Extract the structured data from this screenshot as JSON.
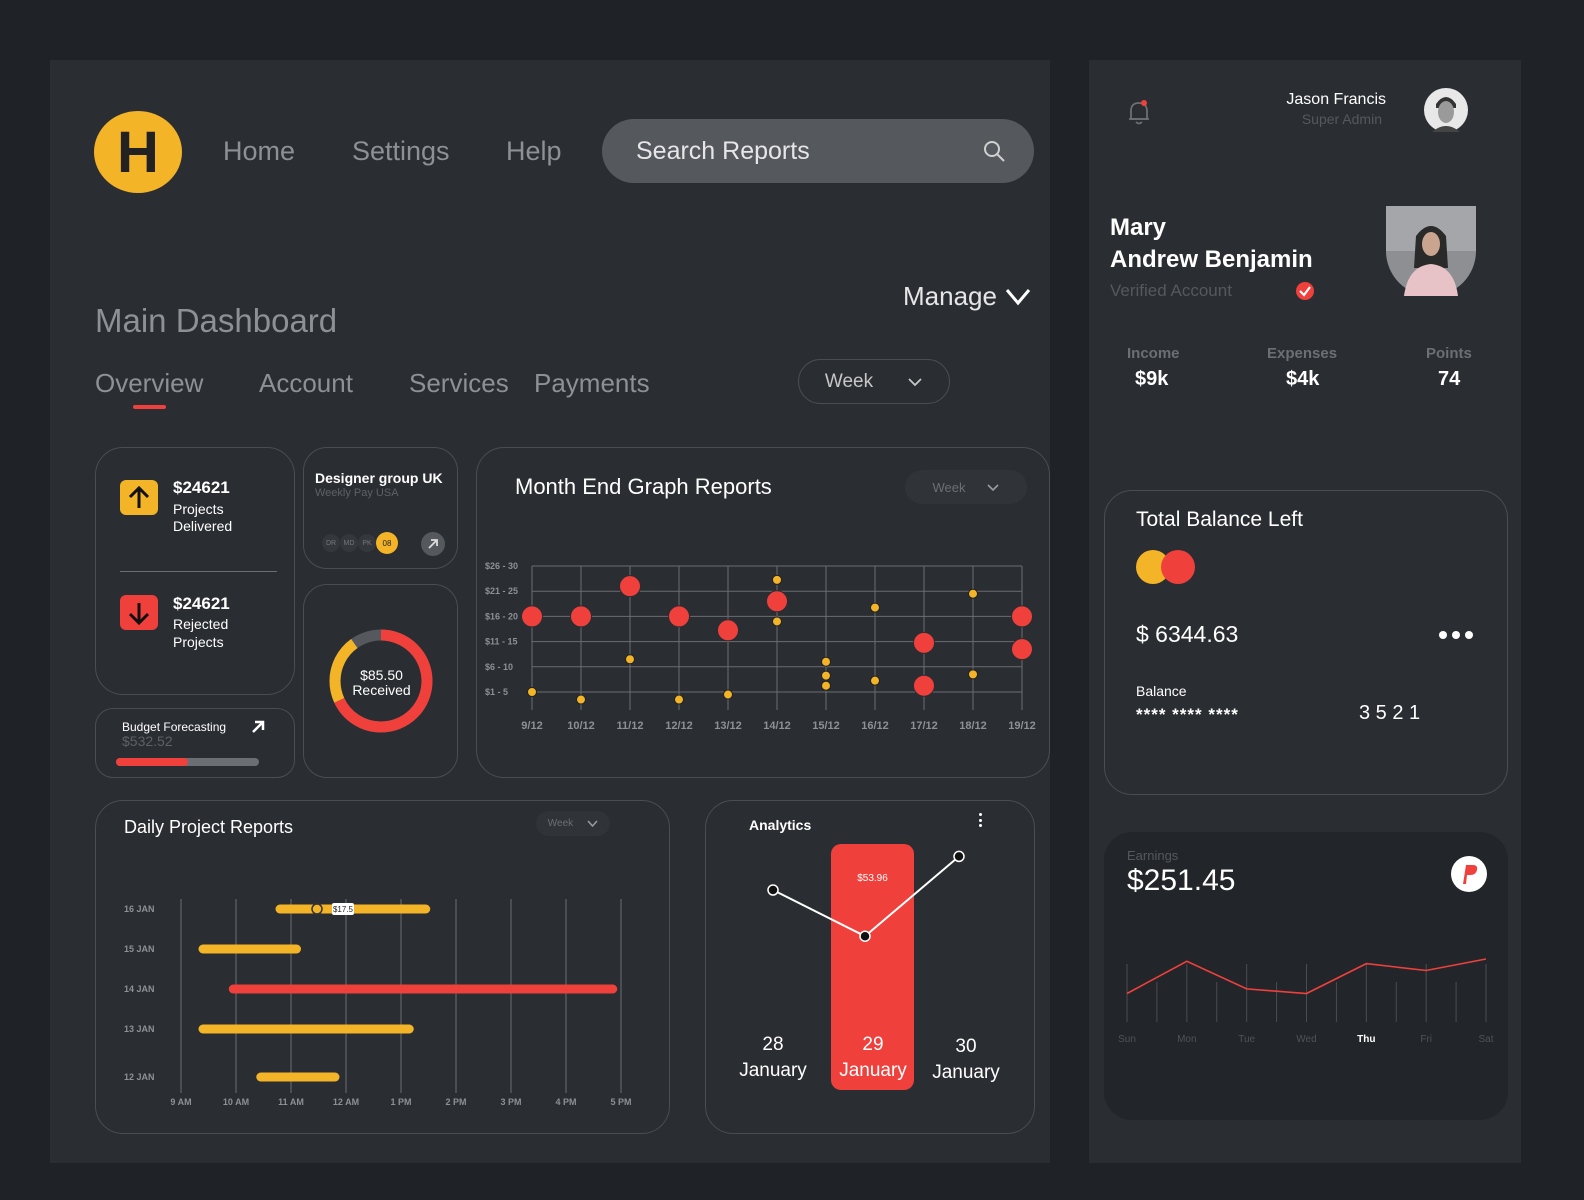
{
  "brand": {
    "logo_letter": "H",
    "accent": "#f4b428",
    "red": "#f0403c"
  },
  "nav": {
    "home": "Home",
    "settings": "Settings",
    "help": "Help"
  },
  "search": {
    "placeholder": "Search Reports"
  },
  "dashboard": {
    "title": "Main Dashboard",
    "manage": "Manage",
    "period": "Week",
    "tabs": [
      "Overview",
      "Account",
      "Services",
      "Payments"
    ],
    "active_tab": "Overview"
  },
  "stats": {
    "delivered": {
      "value": "$24621",
      "line1": "Projects",
      "line2": "Delivered"
    },
    "rejected": {
      "value": "$24621",
      "line1": "Rejected",
      "line2": "Projects"
    }
  },
  "budget": {
    "label": "Budget Forecasting",
    "value": "$532.52",
    "progress": 0.5
  },
  "designer": {
    "title": "Designer group UK",
    "subtitle": "Weekly Pay USA",
    "tags": [
      "DR",
      "MD",
      "PK",
      "08"
    ]
  },
  "donut": {
    "amount": "$85.50",
    "label": "Received",
    "red_fraction": 0.68,
    "yellow_fraction": 0.22
  },
  "month_end": {
    "title": "Month End Graph Reports",
    "period": "Week",
    "chart_data": {
      "type": "scatter",
      "title": "Month End Graph Reports",
      "x": [
        "9/12",
        "10/12",
        "11/12",
        "12/12",
        "13/12",
        "14/12",
        "15/12",
        "16/12",
        "17/12",
        "18/12",
        "19/12"
      ],
      "y_categories": [
        "$1 - 5",
        "$6 - 10",
        "$11 - 15",
        "$16 - 20",
        "$21 - 25",
        "$26 - 30"
      ],
      "large_points": [
        [
          0,
          3
        ],
        [
          1,
          3
        ],
        [
          2,
          4.2
        ],
        [
          3,
          3
        ],
        [
          4,
          2.45
        ],
        [
          5,
          3.6
        ],
        [
          8,
          1.95
        ],
        [
          8,
          0.25
        ],
        [
          10,
          3
        ],
        [
          10,
          1.7
        ]
      ],
      "small_points": [
        [
          0,
          0
        ],
        [
          1,
          -0.3
        ],
        [
          2,
          1.3
        ],
        [
          3,
          -0.3
        ],
        [
          4,
          -0.1
        ],
        [
          5,
          4.45
        ],
        [
          5,
          2.8
        ],
        [
          6,
          1.2
        ],
        [
          6,
          0.65
        ],
        [
          6,
          0.25
        ],
        [
          7,
          3.35
        ],
        [
          7,
          0.45
        ],
        [
          9,
          3.9
        ],
        [
          9,
          0.7
        ]
      ]
    }
  },
  "daily": {
    "title": "Daily Project Reports",
    "period": "Week",
    "tooltip": "$17.5",
    "chart_data": {
      "type": "bar",
      "title": "Daily Project Reports",
      "rows": [
        "16 JAN",
        "15 JAN",
        "14 JAN",
        "13 JAN",
        "12 JAN"
      ],
      "x_ticks": [
        "9 AM",
        "10 AM",
        "11 AM",
        "12 AM",
        "1 PM",
        "2 PM",
        "3 PM",
        "4 PM",
        "5 PM"
      ],
      "bars": [
        {
          "row": "16 JAN",
          "start": 10.8,
          "end": 13.45,
          "color": "#f4b428"
        },
        {
          "row": "15 JAN",
          "start": 9.4,
          "end": 11.1,
          "color": "#f4b428"
        },
        {
          "row": "14 JAN",
          "start": 9.95,
          "end": 16.85,
          "color": "#f0403c"
        },
        {
          "row": "13 JAN",
          "start": 9.4,
          "end": 13.15,
          "color": "#f4b428"
        },
        {
          "row": "12 JAN",
          "start": 10.45,
          "end": 11.8,
          "color": "#f4b428"
        }
      ]
    }
  },
  "analytics": {
    "title": "Analytics",
    "highlight_value": "$53.96",
    "days": [
      {
        "num": "28",
        "month": "January"
      },
      {
        "num": "29",
        "month": "January"
      },
      {
        "num": "30",
        "month": "January"
      }
    ],
    "chart_data": {
      "type": "line",
      "x": [
        "28 January",
        "29 January",
        "30 January"
      ],
      "values": [
        60,
        38,
        76
      ]
    }
  },
  "user": {
    "name": "Jason Francis",
    "role": "Super Admin"
  },
  "profile": {
    "first": "Mary",
    "last": "Andrew Benjamin",
    "status": "Verified Account",
    "income_label": "Income",
    "income": "$9k",
    "expenses_label": "Expenses",
    "expenses": "$4k",
    "points_label": "Points",
    "points": "74"
  },
  "balance": {
    "title": "Total Balance Left",
    "amount": "$ 6344.63",
    "label": "Balance",
    "masked": "**** **** ****",
    "last4": "3 5 2 1"
  },
  "earnings": {
    "label": "Earnings",
    "amount": "$251.45",
    "chart_data": {
      "type": "line",
      "x": [
        "Sun",
        "Mon",
        "Tue",
        "Wed",
        "Thu",
        "Fri",
        "Sat"
      ],
      "values": [
        30,
        58,
        34,
        30,
        56,
        50,
        60
      ],
      "highlight": "Thu"
    }
  }
}
